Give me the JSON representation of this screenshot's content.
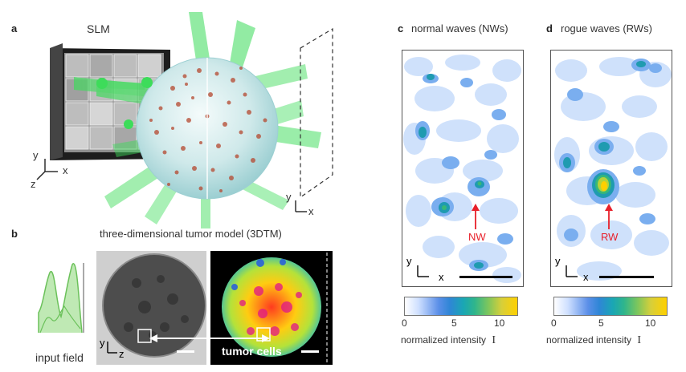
{
  "panel_a": {
    "label": "a",
    "slm_title": "SLM",
    "axes_left": {
      "y": "y",
      "x": "x",
      "z": "z"
    },
    "axes_right": {
      "y": "y",
      "x": "x"
    }
  },
  "panel_b": {
    "label": "b",
    "title": "three-dimensional tumor model (3DTM)",
    "input_label": "input field",
    "tumor_label": "tumor cells",
    "axes": {
      "y": "y",
      "z": "z"
    }
  },
  "panel_c": {
    "label": "c",
    "title": "normal waves (NWs)",
    "marker": "NW",
    "axes": {
      "y": "y",
      "x": "x"
    },
    "colorbar": {
      "ticks": [
        "0",
        "5",
        "10"
      ],
      "title": "normalized intensity",
      "symbol": "I"
    }
  },
  "panel_d": {
    "label": "d",
    "title": "rogue waves (RWs)",
    "marker": "RW",
    "axes": {
      "y": "y",
      "x": "x"
    },
    "colorbar": {
      "ticks": [
        "0",
        "5",
        "10"
      ],
      "title": "normalized intensity",
      "symbol": "I"
    }
  },
  "colors": {
    "accent_red": "#e8202a",
    "beam_green": "#3ddc5a"
  }
}
